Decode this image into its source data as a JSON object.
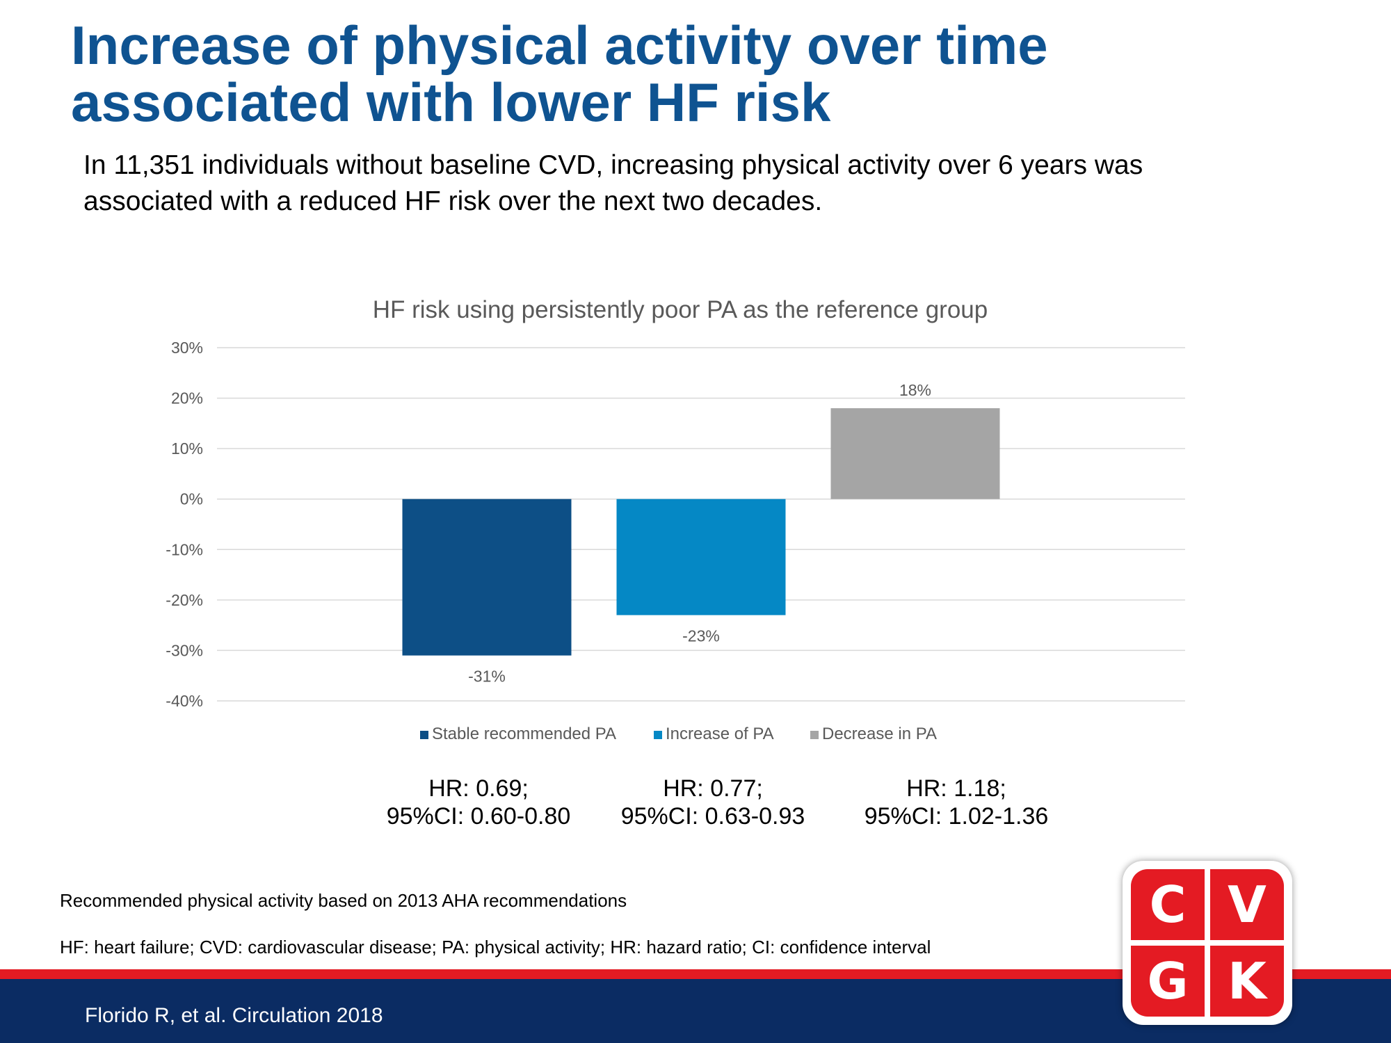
{
  "slide": {
    "title_line1": "Increase of physical activity over time",
    "title_line2": "associated with lower HF risk",
    "subtitle_line1": "In 11,351 individuals without baseline CVD, increasing physical activity over 6 years was",
    "subtitle_line2": "associated with a reduced HF risk over the next two decades."
  },
  "chart_data": {
    "type": "bar",
    "title": "HF risk using persistently poor PA as the reference group",
    "categories": [
      "Stable recommended PA",
      "Increase of PA",
      "Decrease in PA"
    ],
    "values": [
      -31,
      -23,
      18
    ],
    "data_labels": [
      "-31%",
      "-23%",
      "18%"
    ],
    "colors": [
      "#0d4f86",
      "#0588c5",
      "#a5a5a5"
    ],
    "ylim": [
      -40,
      30
    ],
    "yticks": [
      30,
      20,
      10,
      0,
      -10,
      -20,
      -30,
      -40
    ],
    "ytick_labels": [
      "30%",
      "20%",
      "10%",
      "0%",
      "-10%",
      "-20%",
      "-30%",
      "-40%"
    ],
    "grid": true,
    "legend": "bottom",
    "xlabel": "",
    "ylabel": ""
  },
  "hazard_ratios": [
    {
      "hr": "HR: 0.69;",
      "ci": "95%CI: 0.60-0.80"
    },
    {
      "hr": "HR: 0.77;",
      "ci": "95%CI: 0.63-0.93"
    },
    {
      "hr": "HR: 1.18;",
      "ci": "95%CI: 1.02-1.36"
    }
  ],
  "notes": {
    "recommendation": "Recommended physical activity based on 2013 AHA recommendations",
    "abbreviations": "HF: heart failure; CVD: cardiovascular disease; PA: physical activity; HR: hazard ratio; CI: confidence interval"
  },
  "footer": {
    "citation": "Florido R, et al. Circulation 2018"
  },
  "logo": {
    "letters": [
      "C",
      "V",
      "G",
      "K"
    ],
    "color": "#e41b23"
  }
}
